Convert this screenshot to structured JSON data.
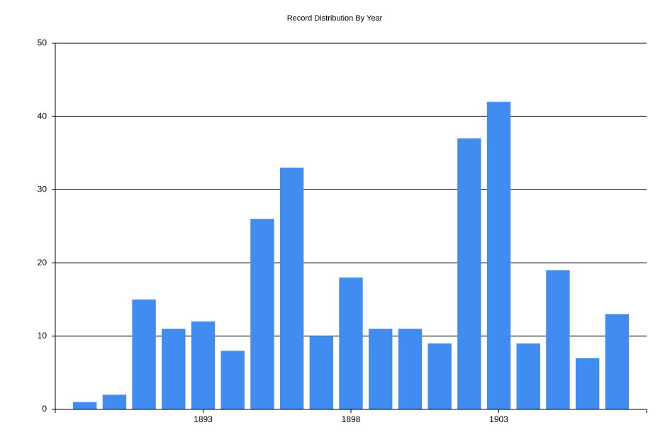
{
  "chart_data": {
    "type": "bar",
    "title": "Record Distribution By Year",
    "x": [
      1889,
      1890,
      1891,
      1892,
      1893,
      1894,
      1895,
      1896,
      1897,
      1898,
      1899,
      1900,
      1901,
      1902,
      1903,
      1904,
      1905,
      1906,
      1907
    ],
    "values": [
      1,
      2,
      15,
      11,
      12,
      8,
      26,
      33,
      10,
      18,
      11,
      11,
      9,
      37,
      42,
      9,
      19,
      7,
      13
    ],
    "color": "#418cf0",
    "xlim": [
      1888,
      1908
    ],
    "xticks": [
      1893,
      1898,
      1903
    ],
    "ylim": [
      0,
      50
    ],
    "yticks": [
      0,
      10,
      20,
      30,
      40,
      50
    ],
    "grid": true
  }
}
